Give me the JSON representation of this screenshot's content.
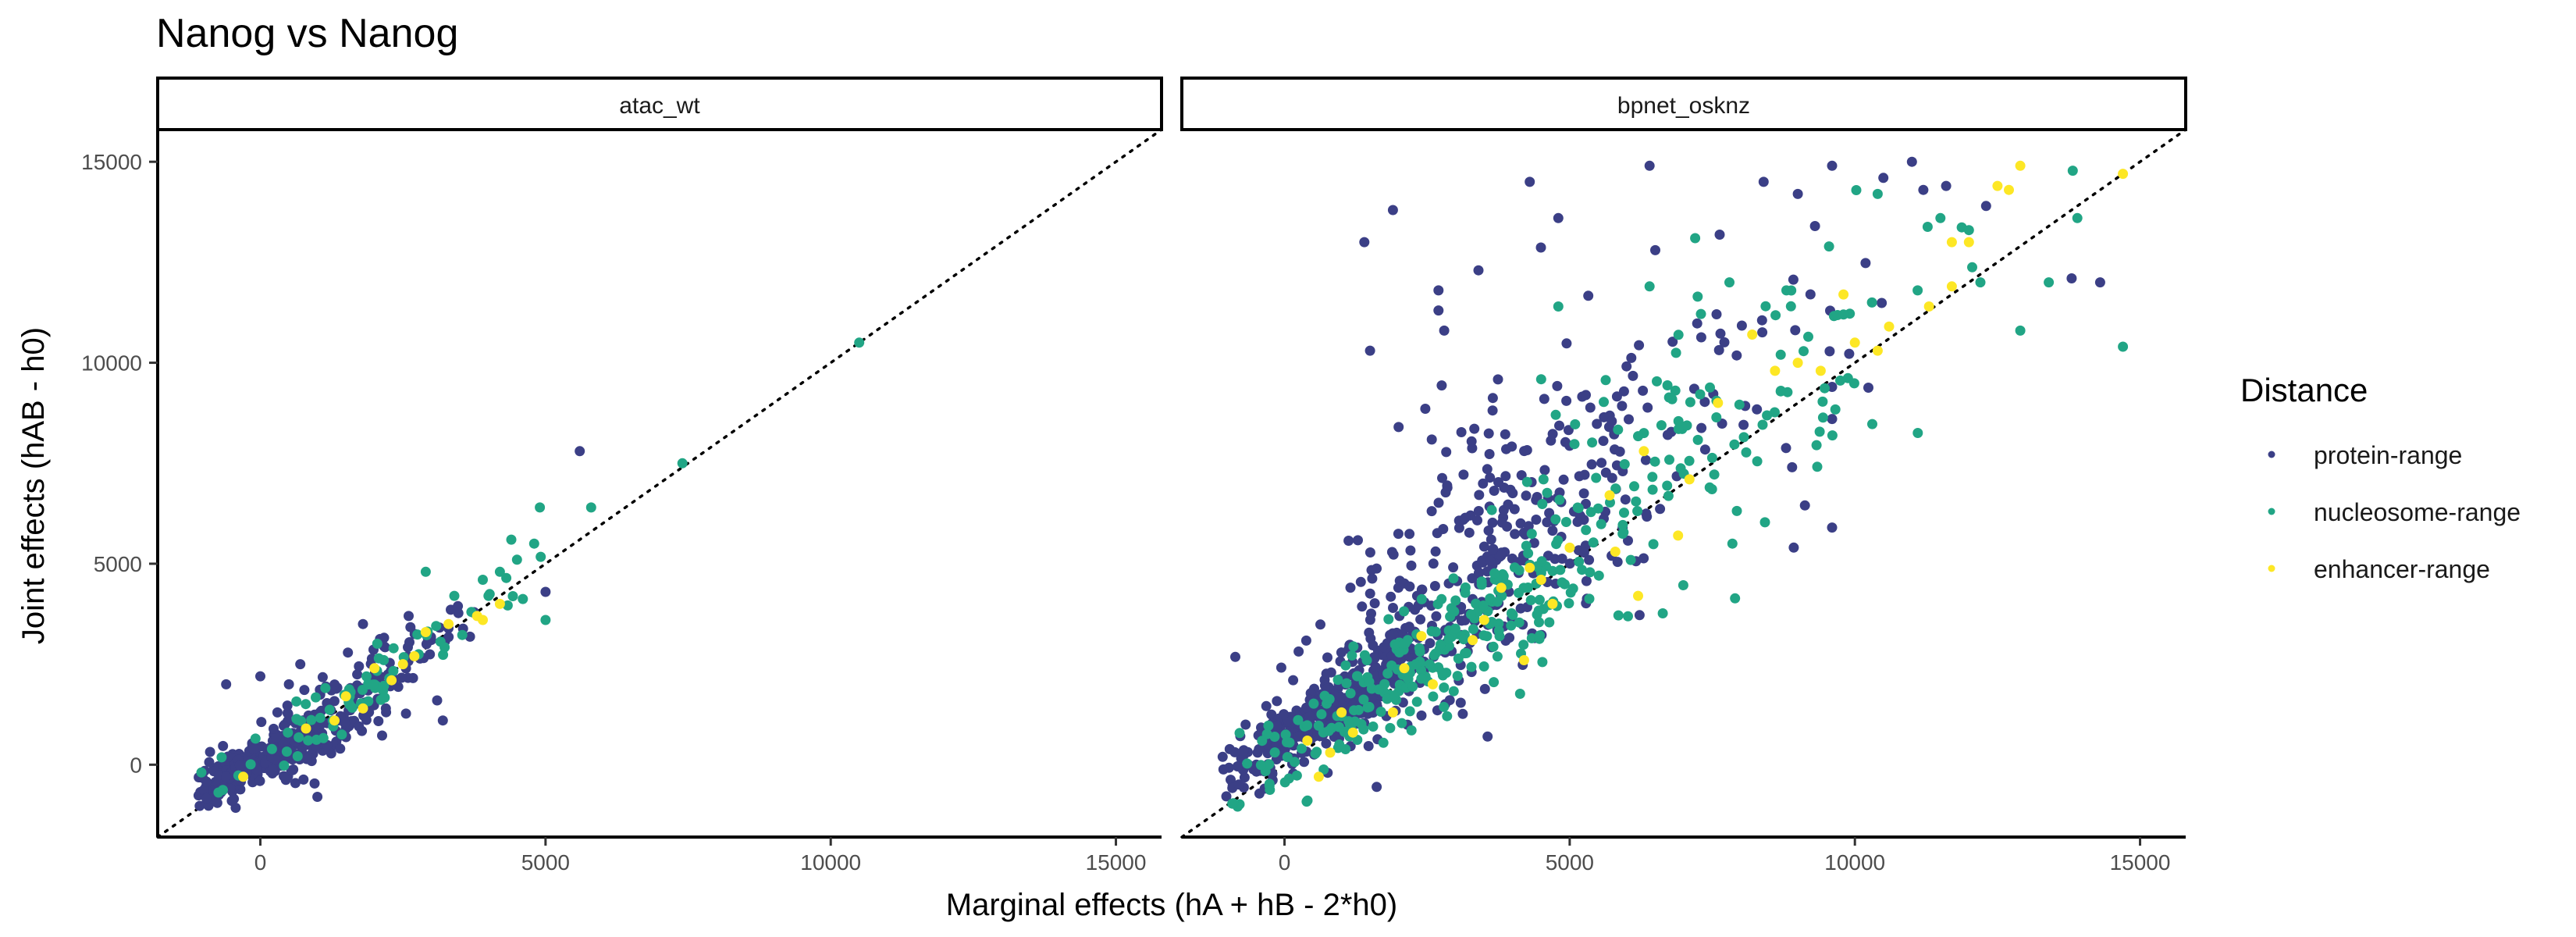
{
  "chart_data": {
    "type": "scatter",
    "title": "Nanog vs Nanog",
    "xlabel": "Marginal effects (hA + hB - 2*h0)",
    "ylabel": "Joint effects (hAB - h0)",
    "xlim": [
      -1800,
      15800
    ],
    "ylim": [
      -1800,
      15800
    ],
    "xticks": [
      0,
      5000,
      10000,
      15000
    ],
    "yticks": [
      0,
      5000,
      10000,
      15000
    ],
    "xtick_labels": [
      "0",
      "5000",
      "10000",
      "15000"
    ],
    "ytick_labels": [
      "0",
      "5000",
      "10000",
      "15000"
    ],
    "reference_line": "y = x (dotted)",
    "grid": false,
    "legend": {
      "title": "Distance",
      "placement": "right",
      "entries": [
        {
          "label": "protein-range",
          "color": "#3b3f86"
        },
        {
          "label": "nucleosome-range",
          "color": "#21a585"
        },
        {
          "label": "enhancer-range",
          "color": "#fde725"
        }
      ]
    },
    "panels": [
      {
        "strip": "atac_wt",
        "series": [
          {
            "name": "protein-range",
            "color": "#3b3f86",
            "points": [
              [
                5600,
                7800
              ],
              [
                5000,
                4300
              ],
              [
                3100,
                1600
              ],
              [
                3200,
                1100
              ],
              [
                1400,
                400
              ],
              [
                1000,
                -800
              ],
              [
                700,
                2500
              ],
              [
                1800,
                3500
              ],
              [
                2600,
                3700
              ],
              [
                -600,
                2000
              ],
              [
                0,
                2200
              ],
              [
                500,
                2000
              ],
              [
                2200,
                1400
              ],
              [
                -500,
                -900
              ],
              [
                300,
                1300
              ]
            ],
            "clusters": [
              {
                "cx": 200,
                "cy": 200,
                "sx": 800,
                "sy": 600,
                "rho": 0.85,
                "n": 260
              },
              {
                "cx": 1800,
                "cy": 2000,
                "sx": 900,
                "sy": 850,
                "rho": 0.9,
                "n": 110
              },
              {
                "cx": -600,
                "cy": -500,
                "sx": 300,
                "sy": 300,
                "rho": 0.8,
                "n": 60
              }
            ]
          },
          {
            "name": "nucleosome-range",
            "color": "#21a585",
            "points": [
              [
                10500,
                10500
              ],
              [
                7400,
                7500
              ],
              [
                5800,
                6400
              ],
              [
                4900,
                6400
              ],
              [
                5000,
                3600
              ],
              [
                4400,
                5600
              ],
              [
                4500,
                5100
              ],
              [
                4800,
                5500
              ],
              [
                3400,
                4200
              ],
              [
                2900,
                4800
              ],
              [
                3900,
                4600
              ],
              [
                4200,
                4800
              ],
              [
                3700,
                3800
              ],
              [
                4000,
                4200
              ]
            ],
            "clusters": [
              {
                "cx": 1700,
                "cy": 1800,
                "sx": 1300,
                "sy": 1300,
                "rho": 0.96,
                "n": 75
              }
            ]
          },
          {
            "name": "enhancer-range",
            "color": "#fde725",
            "points": [
              [
                4200,
                4000
              ],
              [
                3800,
                3700
              ],
              [
                3900,
                3600
              ],
              [
                1300,
                1100
              ],
              [
                2000,
                2400
              ],
              [
                2300,
                2100
              ],
              [
                2500,
                2500
              ],
              [
                1800,
                1400
              ],
              [
                2900,
                3300
              ],
              [
                3300,
                3500
              ],
              [
                1500,
                1700
              ],
              [
                800,
                900
              ],
              [
                -300,
                -300
              ],
              [
                2700,
                2700
              ]
            ],
            "clusters": []
          }
        ]
      },
      {
        "strip": "bpnet_osknz",
        "series": [
          {
            "name": "protein-range",
            "color": "#3b3f86",
            "points": [
              [
                4300,
                14500
              ],
              [
                6400,
                14900
              ],
              [
                9600,
                14900
              ],
              [
                11000,
                15000
              ],
              [
                11200,
                14300
              ],
              [
                10500,
                14600
              ],
              [
                11600,
                14400
              ],
              [
                14300,
                12000
              ],
              [
                13800,
                12100
              ],
              [
                9300,
                13400
              ],
              [
                9000,
                14200
              ],
              [
                8400,
                14500
              ],
              [
                1900,
                13800
              ],
              [
                1400,
                13000
              ],
              [
                3400,
                12300
              ],
              [
                1500,
                10300
              ],
              [
                6500,
                12800
              ],
              [
                2700,
                11800
              ],
              [
                2800,
                10800
              ],
              [
                8900,
                7400
              ],
              [
                9600,
                9400
              ],
              [
                9600,
                8600
              ],
              [
                9600,
                5900
              ],
              [
                12300,
                13900
              ],
              [
                4800,
                13600
              ],
              [
                2000,
                8400
              ],
              [
                2700,
                11300
              ]
            ],
            "clusters": [
              {
                "cx": 800,
                "cy": 1400,
                "sx": 1000,
                "sy": 1000,
                "rho": 0.9,
                "n": 380
              },
              {
                "cx": 3200,
                "cy": 4600,
                "sx": 1600,
                "sy": 2200,
                "rho": 0.7,
                "n": 300
              },
              {
                "cx": 6200,
                "cy": 8600,
                "sx": 2200,
                "sy": 2600,
                "rho": 0.6,
                "n": 80
              }
            ]
          },
          {
            "name": "nucleosome-range",
            "color": "#21a585",
            "points": [
              [
                14700,
                10400
              ],
              [
                13900,
                13600
              ],
              [
                12900,
                10800
              ],
              [
                13400,
                12000
              ],
              [
                11500,
                13600
              ],
              [
                12000,
                13300
              ],
              [
                10300,
                11500
              ],
              [
                11100,
                11800
              ],
              [
                9800,
                11200
              ],
              [
                12200,
                12000
              ],
              [
                7800,
                12000
              ],
              [
                7200,
                13100
              ],
              [
                8700,
                10200
              ],
              [
                8800,
                11800
              ],
              [
                6400,
                11900
              ],
              [
                4800,
                11400
              ],
              [
                10400,
                14200
              ]
            ],
            "clusters": [
              {
                "cx": 2300,
                "cy": 2500,
                "sx": 1900,
                "sy": 2000,
                "rho": 0.93,
                "n": 270
              },
              {
                "cx": 7000,
                "cy": 8200,
                "sx": 2000,
                "sy": 2400,
                "rho": 0.65,
                "n": 110
              }
            ]
          },
          {
            "name": "enhancer-range",
            "color": "#fde725",
            "points": [
              [
                14700,
                14700
              ],
              [
                12900,
                14900
              ],
              [
                12500,
                14400
              ],
              [
                12700,
                14300
              ],
              [
                11700,
                13000
              ],
              [
                10400,
                10300
              ],
              [
                11300,
                11400
              ],
              [
                10600,
                10900
              ],
              [
                9400,
                9800
              ],
              [
                7100,
                7100
              ],
              [
                5800,
                5300
              ],
              [
                4700,
                4000
              ],
              [
                4300,
                4900
              ],
              [
                3500,
                3600
              ],
              [
                2100,
                2400
              ],
              [
                1900,
                1300
              ],
              [
                1000,
                1300
              ],
              [
                6300,
                7800
              ],
              [
                5700,
                6700
              ],
              [
                8600,
                9800
              ],
              [
                11700,
                11900
              ],
              [
                9800,
                11700
              ],
              [
                8200,
                10700
              ],
              [
                6900,
                5700
              ],
              [
                6200,
                4200
              ],
              [
                4200,
                2600
              ],
              [
                3300,
                3100
              ],
              [
                2600,
                2000
              ],
              [
                1200,
                800
              ],
              [
                800,
                300
              ],
              [
                400,
                600
              ],
              [
                600,
                -300
              ],
              [
                2400,
                3200
              ],
              [
                5000,
                5400
              ],
              [
                7600,
                9000
              ],
              [
                9000,
                10000
              ],
              [
                10000,
                10500
              ],
              [
                12000,
                13000
              ],
              [
                3800,
                4400
              ],
              [
                4500,
                4600
              ]
            ],
            "clusters": []
          }
        ]
      }
    ]
  }
}
